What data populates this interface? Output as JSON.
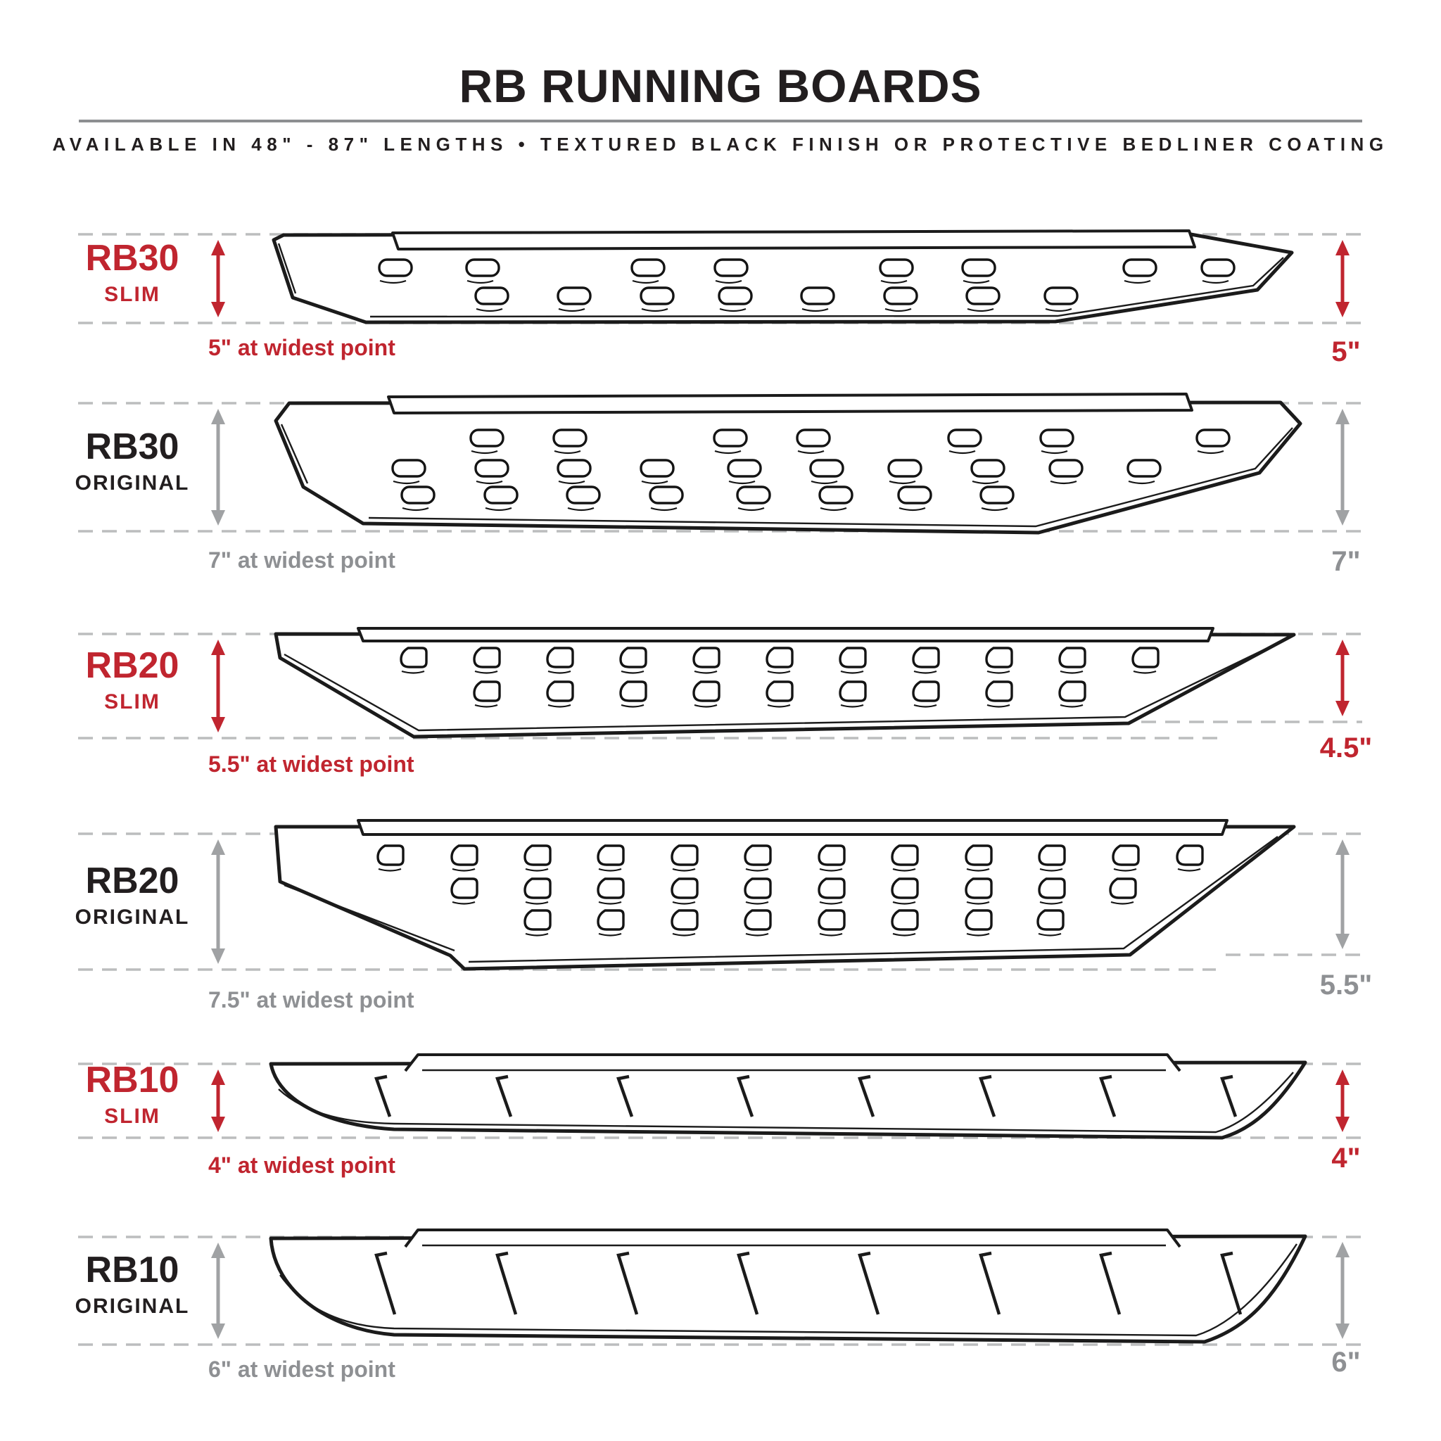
{
  "header": {
    "title": "RB RUNNING BOARDS",
    "subtitle": "AVAILABLE IN 48\" - 87\" LENGTHS  •  TEXTURED BLACK FINISH OR PROTECTIVE BEDLINER COATING"
  },
  "rows": [
    {
      "model": "RB30",
      "variant": "SLIM",
      "width_note": "5\" at widest point",
      "height_note": "5\""
    },
    {
      "model": "RB30",
      "variant": "ORIGINAL",
      "width_note": "7\" at widest point",
      "height_note": "7\""
    },
    {
      "model": "RB20",
      "variant": "SLIM",
      "width_note": "5.5\" at widest point",
      "height_note": "4.5\""
    },
    {
      "model": "RB20",
      "variant": "ORIGINAL",
      "width_note": "7.5\" at widest point",
      "height_note": "5.5\""
    },
    {
      "model": "RB10",
      "variant": "SLIM",
      "width_note": "4\" at widest point",
      "height_note": "4\""
    },
    {
      "model": "RB10",
      "variant": "ORIGINAL",
      "width_note": "6\" at widest point",
      "height_note": "6\""
    }
  ],
  "colors": {
    "accent_red": "#C0252F",
    "muted_gray": "#8E9093",
    "dash_gray": "#BCBDBE",
    "ink_black": "#221E1F"
  }
}
